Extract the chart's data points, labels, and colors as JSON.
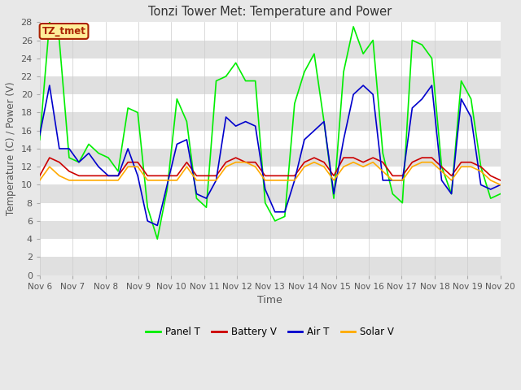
{
  "title": "Tonzi Tower Met: Temperature and Power",
  "xlabel": "Time",
  "ylabel": "Temperature (C) / Power (V)",
  "ylim": [
    0,
    28
  ],
  "yticks": [
    0,
    2,
    4,
    6,
    8,
    10,
    12,
    14,
    16,
    18,
    20,
    22,
    24,
    26,
    28
  ],
  "fig_bg_color": "#e8e8e8",
  "plot_bg_color": "#e8e8e8",
  "band_color_light": "#e0e0e0",
  "band_color_dark": "#d0d0d0",
  "grid_color": "#ffffff",
  "annotation_text": "TZ_tmet",
  "annotation_box_color": "#ffee99",
  "annotation_border_color": "#aa2200",
  "legend_entries": [
    "Panel T",
    "Battery V",
    "Air T",
    "Solar V"
  ],
  "line_colors": [
    "#00ee00",
    "#cc0000",
    "#0000cc",
    "#ffaa00"
  ],
  "x_tick_labels": [
    "Nov 6",
    "Nov 7",
    "Nov 8",
    "Nov 9",
    "Nov 10",
    "Nov 11",
    "Nov 12",
    "Nov 13",
    "Nov 14",
    "Nov 15",
    "Nov 16",
    "Nov 17",
    "Nov 18",
    "Nov 19",
    "Nov 20"
  ],
  "panel_t": [
    15.0,
    28.0,
    26.0,
    13.0,
    12.5,
    14.5,
    13.5,
    13.0,
    11.5,
    18.5,
    18.0,
    7.5,
    4.0,
    9.5,
    19.5,
    17.0,
    8.5,
    7.5,
    21.5,
    22.0,
    23.5,
    21.5,
    21.5,
    8.0,
    6.0,
    6.5,
    19.0,
    22.5,
    24.5,
    17.0,
    8.5,
    22.5,
    27.5,
    24.5,
    26.0,
    13.5,
    9.0,
    8.0,
    26.0,
    25.5,
    24.0,
    12.0,
    9.0,
    21.5,
    19.5,
    12.0,
    8.5,
    9.0
  ],
  "battery_v": [
    11.0,
    13.0,
    12.5,
    11.5,
    11.0,
    11.0,
    11.0,
    11.0,
    11.0,
    12.5,
    12.5,
    11.0,
    11.0,
    11.0,
    11.0,
    12.5,
    11.0,
    11.0,
    11.0,
    12.5,
    13.0,
    12.5,
    12.5,
    11.0,
    11.0,
    11.0,
    11.0,
    12.5,
    13.0,
    12.5,
    11.0,
    13.0,
    13.0,
    12.5,
    13.0,
    12.5,
    11.0,
    11.0,
    12.5,
    13.0,
    13.0,
    12.0,
    11.0,
    12.5,
    12.5,
    12.0,
    11.0,
    10.5
  ],
  "air_t": [
    15.5,
    21.0,
    14.0,
    14.0,
    12.5,
    13.5,
    12.0,
    11.0,
    11.0,
    14.0,
    11.0,
    6.0,
    5.5,
    10.0,
    14.5,
    15.0,
    9.0,
    8.5,
    10.5,
    17.5,
    16.5,
    17.0,
    16.5,
    9.5,
    7.0,
    7.0,
    10.5,
    15.0,
    16.0,
    17.0,
    9.0,
    15.0,
    20.0,
    21.0,
    20.0,
    10.5,
    10.5,
    10.5,
    18.5,
    19.5,
    21.0,
    10.5,
    9.0,
    19.5,
    17.5,
    10.0,
    9.5,
    10.0
  ],
  "solar_v": [
    10.5,
    12.0,
    11.0,
    10.5,
    10.5,
    10.5,
    10.5,
    10.5,
    10.5,
    12.0,
    12.0,
    10.5,
    10.5,
    10.5,
    10.5,
    12.0,
    10.5,
    10.5,
    10.5,
    12.0,
    12.5,
    12.5,
    12.0,
    10.5,
    10.5,
    10.5,
    10.5,
    12.0,
    12.5,
    12.0,
    10.5,
    12.0,
    12.5,
    12.0,
    12.5,
    11.5,
    10.5,
    10.5,
    12.0,
    12.5,
    12.5,
    11.5,
    10.5,
    12.0,
    12.0,
    11.5,
    10.5,
    10.0
  ]
}
